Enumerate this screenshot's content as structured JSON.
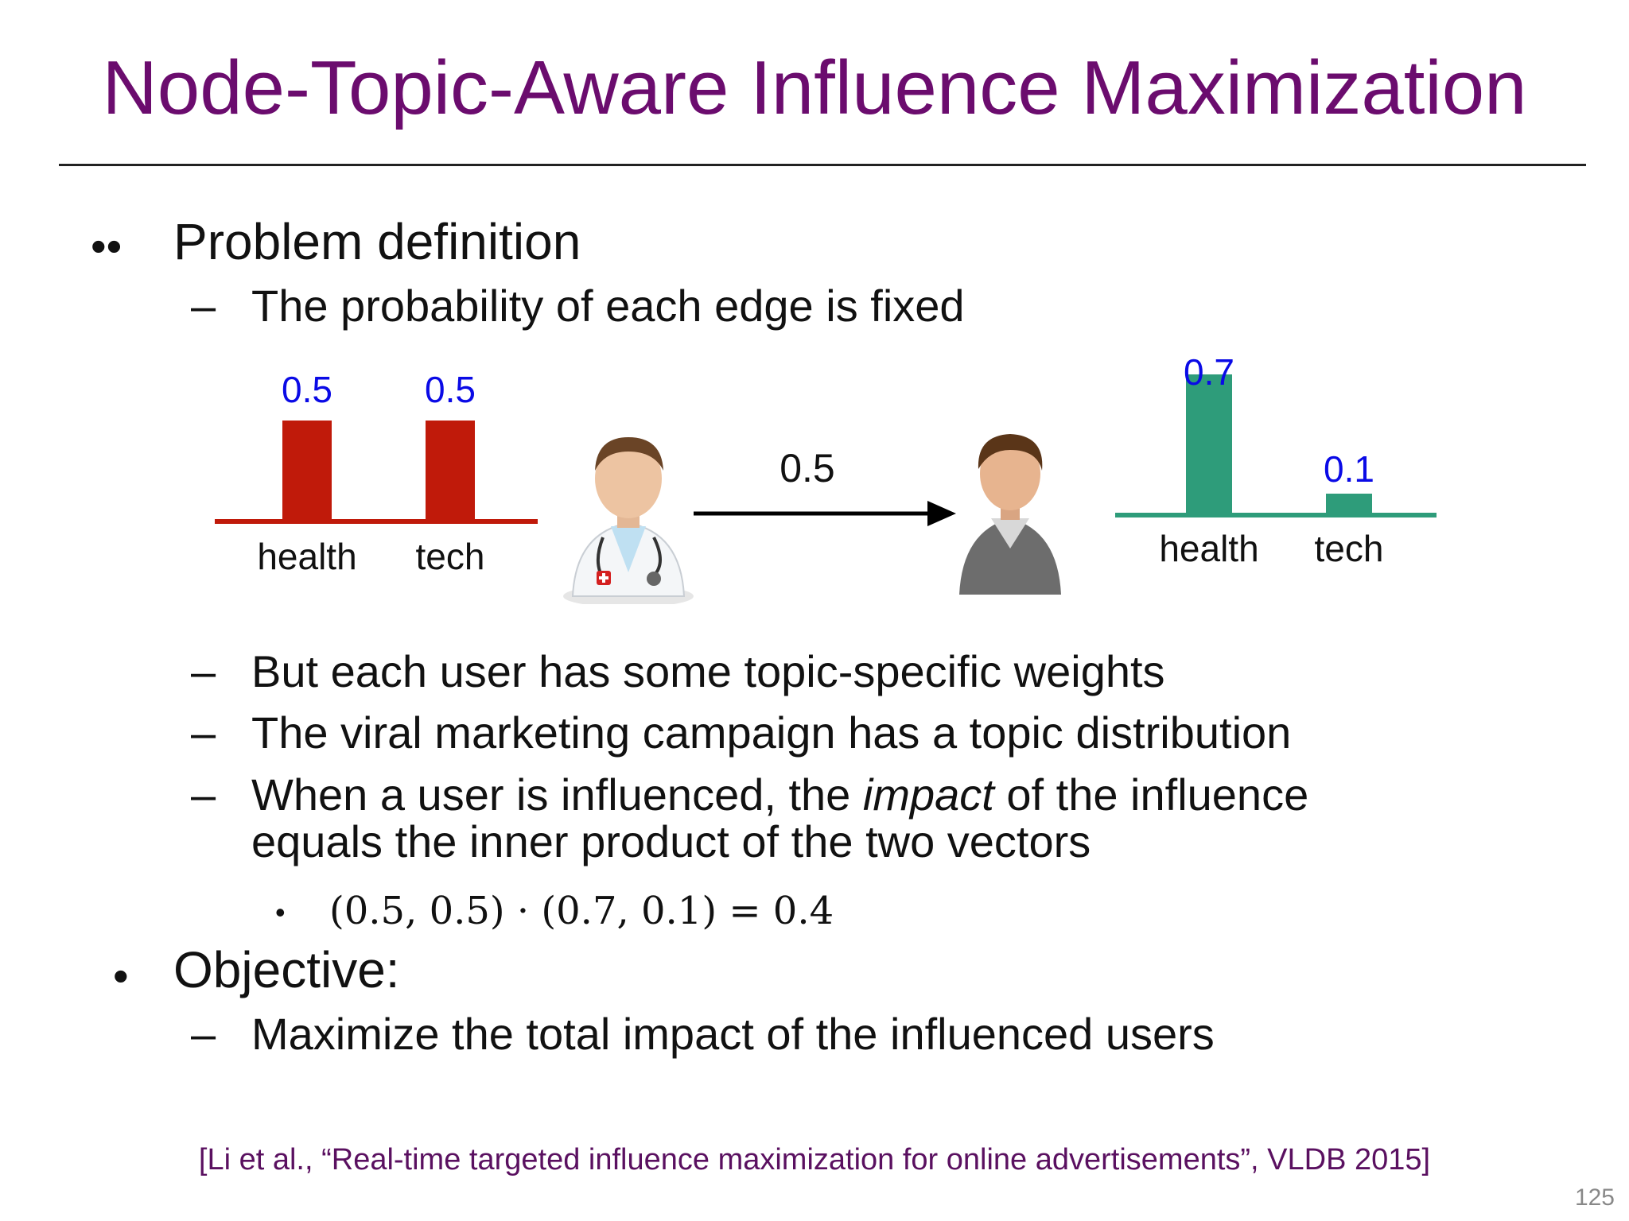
{
  "title": "Node-Topic-Aware Influence Maximization",
  "bullets": [
    {
      "marker": "••",
      "text": "Problem definition",
      "subitems": [
        "The probability of each edge is fixed"
      ]
    }
  ],
  "diagram": {
    "left_chart": {
      "categories": [
        "health",
        "tech"
      ],
      "values": [
        0.5,
        0.5
      ],
      "value_labels": [
        "0.5",
        "0.5"
      ],
      "bar_color": "#c01a0a",
      "label_color": "#0a0ae6"
    },
    "edge_probability": "0.5",
    "source_icon": "doctor-icon",
    "target_icon": "user-icon",
    "right_chart": {
      "categories": [
        "health",
        "tech"
      ],
      "values": [
        0.7,
        0.1
      ],
      "value_labels": [
        "0.7",
        "0.1"
      ],
      "bar_color": "#2e9c7a",
      "label_color": "#0a0ae6"
    }
  },
  "more_subitems": [
    "But each user has some topic-specific weights",
    "The viral marketing campaign has a topic distribution"
  ],
  "impact_item": {
    "before": "When a user is influenced, the ",
    "emphasis": "impact",
    "after": " of the influence",
    "line2": "equals the inner product of the two vectors"
  },
  "formula": "(0.5, 0.5) · (0.7, 0.1) = 0.4",
  "objective": {
    "marker": "•",
    "text": "Objective:",
    "subitems": [
      "Maximize the total impact of the influenced users"
    ]
  },
  "dash": "–",
  "formula_marker": "•",
  "citation": "[Li et al., “Real-time targeted influence maximization for online advertisements”, VLDB 2015]",
  "page_number": "125",
  "colors": {
    "title": "#6b0c6e",
    "citation": "#5a1060"
  }
}
